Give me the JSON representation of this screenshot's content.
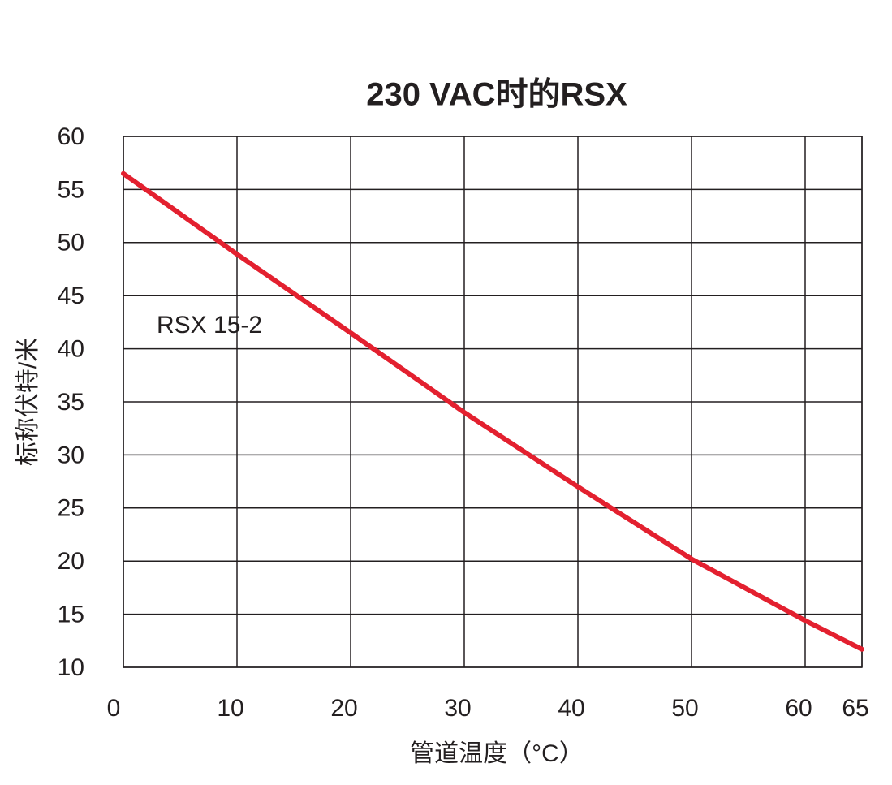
{
  "chart_data": {
    "type": "line",
    "title": "230 VAC时的RSX",
    "x_label": "管道温度（°C）",
    "y_label": "标称伏特/米",
    "x": [
      0,
      10,
      20,
      30,
      40,
      50,
      60,
      65
    ],
    "series": [
      {
        "name": "RSX 15-2",
        "color": "#e3202f",
        "values": [
          56.5,
          48.9,
          41.5,
          34.0,
          27.0,
          20.2,
          14.4,
          11.7
        ]
      }
    ],
    "xlim": [
      0,
      65
    ],
    "xticks": [
      0,
      10,
      20,
      30,
      40,
      50,
      60,
      65
    ],
    "ylim": [
      10,
      60
    ],
    "yticks": [
      10,
      15,
      20,
      25,
      30,
      35,
      40,
      45,
      50,
      55,
      60
    ],
    "grid": true
  }
}
